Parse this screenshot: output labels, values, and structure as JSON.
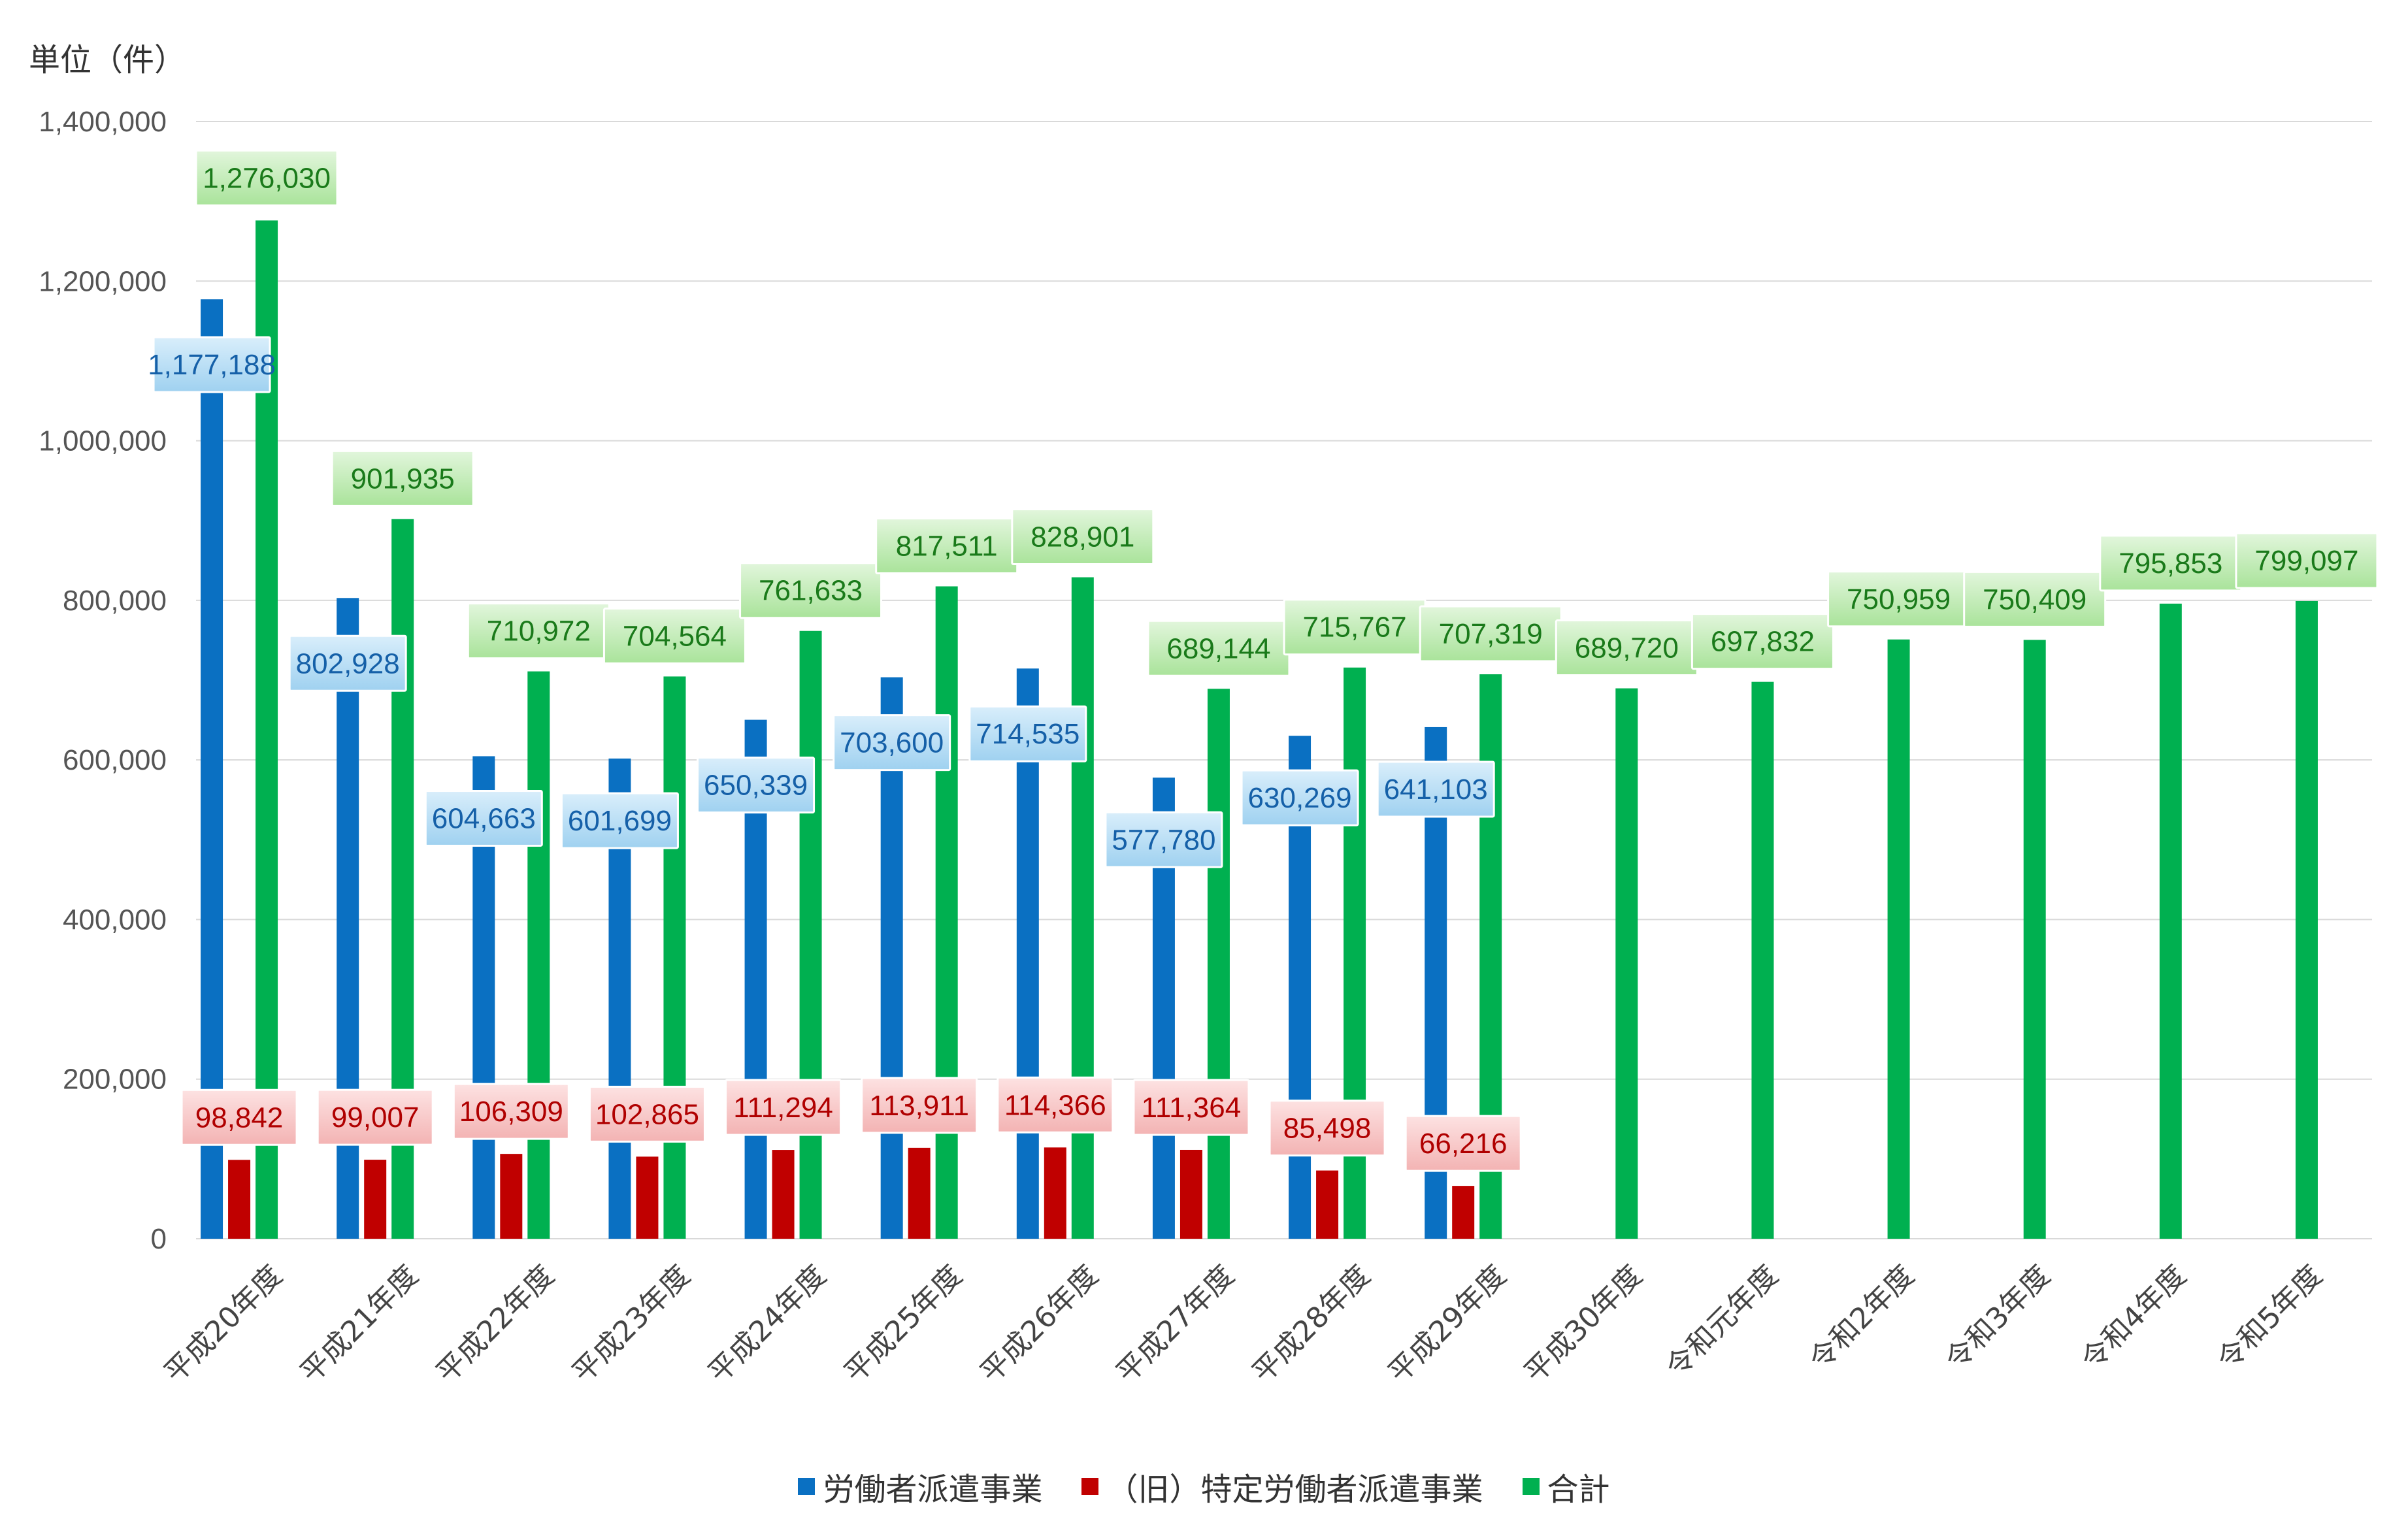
{
  "chart_data": {
    "type": "bar",
    "unit_label": "単位（件）",
    "categories": [
      "平成20年度",
      "平成21年度",
      "平成22年度",
      "平成23年度",
      "平成24年度",
      "平成25年度",
      "平成26年度",
      "平成27年度",
      "平成28年度",
      "平成29年度",
      "平成30年度",
      "令和元年度",
      "令和2年度",
      "令和3年度",
      "令和4年度",
      "令和5年度"
    ],
    "ylim": [
      0,
      1400000
    ],
    "yticks": [
      0,
      200000,
      400000,
      600000,
      800000,
      1000000,
      1200000,
      1400000
    ],
    "ytick_labels": [
      "0",
      "200,000",
      "400,000",
      "600,000",
      "800,000",
      "1,000,000",
      "1,200,000",
      "1,400,000"
    ],
    "grid": true,
    "legend_position": "bottom",
    "series": [
      {
        "name": "労働者派遣事業",
        "color": "#0a70c2",
        "label_text_color": "#1560a8",
        "values": [
          1177188,
          802928,
          604663,
          601699,
          650339,
          703600,
          714535,
          577780,
          630269,
          641103,
          null,
          null,
          null,
          null,
          null,
          null
        ],
        "labels": [
          "1,177,188",
          "802,928",
          "604,663",
          "601,699",
          "650,339",
          "703,600",
          "714,535",
          "577,780",
          "630,269",
          "641,103",
          "",
          "",
          "",
          "",
          "",
          ""
        ]
      },
      {
        "name": "（旧）特定労働者派遣事業",
        "color": "#c00000",
        "label_text_color": "#b00000",
        "values": [
          98842,
          99007,
          106309,
          102865,
          111294,
          113911,
          114366,
          111364,
          85498,
          66216,
          null,
          null,
          null,
          null,
          null,
          null
        ],
        "labels": [
          "98,842",
          "99,007",
          "106,309",
          "102,865",
          "111,294",
          "113,911",
          "114,366",
          "111,364",
          "85,498",
          "66,216",
          "",
          "",
          "",
          "",
          "",
          ""
        ]
      },
      {
        "name": "合計",
        "color": "#00b050",
        "label_text_color": "#1a7a1a",
        "values": [
          1276030,
          901935,
          710972,
          704564,
          761633,
          817511,
          828901,
          689144,
          715767,
          707319,
          689720,
          697832,
          750959,
          750409,
          795853,
          799097
        ],
        "labels": [
          "1,276,030",
          "901,935",
          "710,972",
          "704,564",
          "761,633",
          "817,511",
          "828,901",
          "689,144",
          "715,767",
          "707,319",
          "689,720",
          "697,832",
          "750,959",
          "750,409",
          "795,853",
          "799,097"
        ]
      }
    ]
  }
}
